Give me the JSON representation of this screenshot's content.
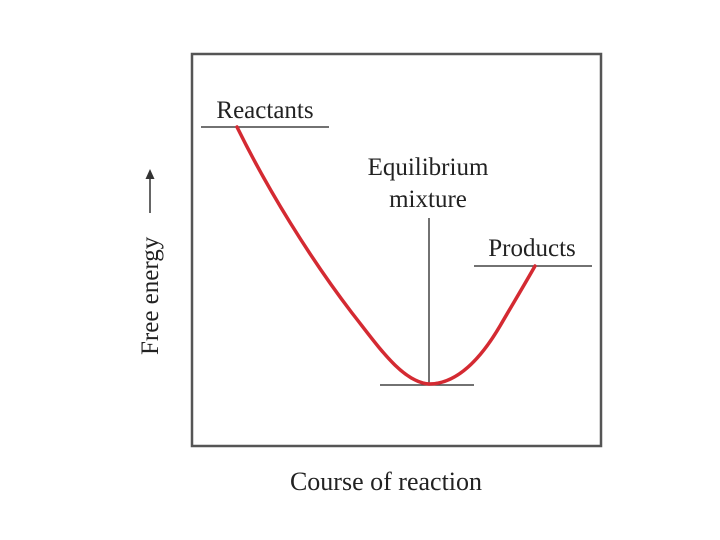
{
  "diagram": {
    "y_axis_label": "Free energy",
    "x_axis_label": "Course of reaction",
    "reactants_label": "Reactants",
    "equilibrium_label_line1": "Equilibrium",
    "equilibrium_label_line2": "mixture",
    "products_label": "Products"
  },
  "colors": {
    "curve": "#d42a32",
    "frame": "#555555",
    "lines": "#444444",
    "text": "#222222"
  }
}
